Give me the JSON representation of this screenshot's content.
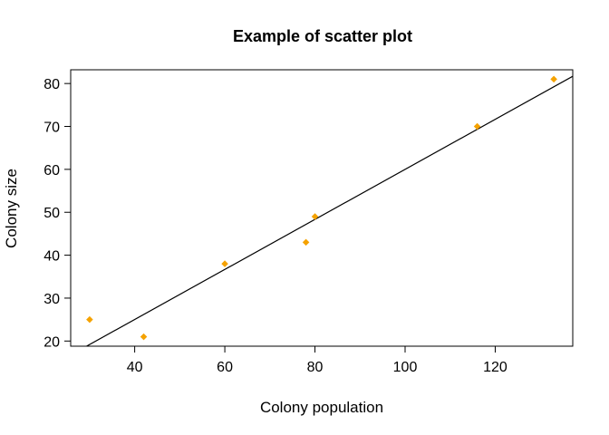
{
  "chart_data": {
    "type": "scatter",
    "title": "Example of scatter plot",
    "xlabel": "Colony population",
    "ylabel": "Colony size",
    "xlim": [
      25.8,
      137.2
    ],
    "ylim": [
      18.8,
      83.2
    ],
    "xticks": [
      40,
      60,
      80,
      100,
      120
    ],
    "yticks": [
      20,
      30,
      40,
      50,
      60,
      70,
      80
    ],
    "grid": false,
    "legend": "none",
    "point_color": "#F5A200",
    "line_color": "#000000",
    "points": [
      {
        "x": 30,
        "y": 25
      },
      {
        "x": 42,
        "y": 21
      },
      {
        "x": 60,
        "y": 38
      },
      {
        "x": 78,
        "y": 43
      },
      {
        "x": 80,
        "y": 49
      },
      {
        "x": 116,
        "y": 70
      },
      {
        "x": 133,
        "y": 81
      }
    ],
    "fit_line": {
      "type": "linear",
      "intercept": 1.7,
      "slope": 0.583
    }
  }
}
